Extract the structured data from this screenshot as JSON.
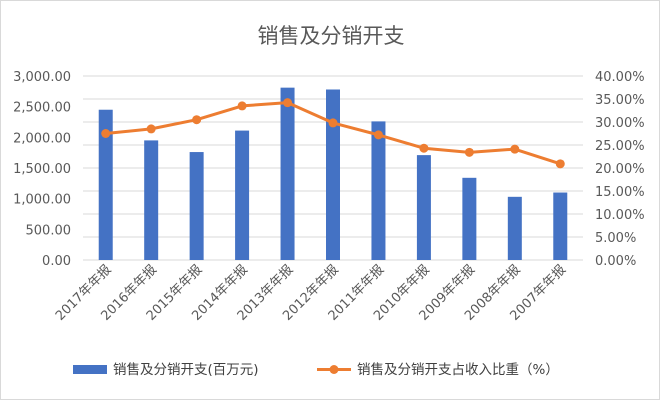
{
  "chart_data": {
    "type": "bar",
    "title": "销售及分销开支",
    "categories": [
      "2017年年报",
      "2016年年报",
      "2015年年报",
      "2014年年报",
      "2013年年报",
      "2012年年报",
      "2011年年报",
      "2010年年报",
      "2009年年报",
      "2008年年报",
      "2007年年报"
    ],
    "series": [
      {
        "name": "销售及分销开支(百万元)",
        "type": "bar",
        "axis": "left",
        "color": "#4472c4",
        "values": [
          2450,
          1950,
          1760,
          2110,
          2810,
          2780,
          2260,
          1710,
          1340,
          1030,
          1100
        ]
      },
      {
        "name": "销售及分销开支占收入比重（%）",
        "type": "line",
        "axis": "right",
        "color": "#ed7d31",
        "values": [
          27.5,
          28.5,
          30.5,
          33.5,
          34.2,
          29.8,
          27.2,
          24.3,
          23.4,
          24.1,
          20.9
        ]
      }
    ],
    "y_left": {
      "ylim": [
        0,
        3000
      ],
      "ticks": [
        "0.00",
        "500.00",
        "1,000.00",
        "1,500.00",
        "2,000.00",
        "2,500.00",
        "3,000.00"
      ]
    },
    "y_right": {
      "ylim": [
        0,
        40
      ],
      "ticks": [
        "0.00%",
        "5.00%",
        "10.00%",
        "15.00%",
        "20.00%",
        "25.00%",
        "30.00%",
        "35.00%",
        "40.00%"
      ]
    },
    "grid": true,
    "legend": "bottom"
  }
}
